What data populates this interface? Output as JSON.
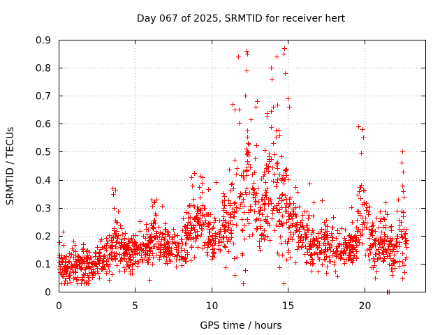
{
  "chart_data": {
    "type": "scatter",
    "title": "Day 067 of 2025, SRMTID for receiver hert",
    "xlabel": "GPS time / hours",
    "ylabel": "SRMTID / TECUs",
    "xlim": [
      0,
      24
    ],
    "ylim": [
      0,
      0.9
    ],
    "xticks": [
      0,
      5,
      10,
      15,
      20
    ],
    "xtick_labels": [
      "0",
      "5",
      "10",
      "15",
      "20"
    ],
    "yticks": [
      0,
      0.1,
      0.2,
      0.3,
      0.4,
      0.5,
      0.6,
      0.7,
      0.8,
      0.9
    ],
    "ytick_labels": [
      "0",
      "0.1",
      "0.2",
      "0.3",
      "0.4",
      "0.5",
      "0.6",
      "0.7",
      "0.8",
      "0.9"
    ],
    "grid": true,
    "marker": "+",
    "color": "#ff0000",
    "envelope": {
      "description": "approximate typical value and spread of the SRMTID scatter vs GPS time (estimated from the figure)",
      "x": [
        0,
        0.5,
        1,
        1.5,
        2,
        2.5,
        3,
        3.4,
        3.6,
        4,
        4.5,
        5,
        5.5,
        6,
        6.3,
        6.6,
        7,
        7.5,
        8,
        8.5,
        9,
        9.5,
        10,
        10.5,
        11,
        11.5,
        12,
        12.3,
        12.8,
        13.2,
        13.8,
        14.3,
        14.7,
        15,
        15.5,
        16,
        16.5,
        17,
        17.5,
        18,
        18.5,
        19,
        19.5,
        19.8,
        20.2,
        20.6,
        21,
        21.5,
        22,
        22.4,
        22.8
      ],
      "center": [
        0.1,
        0.08,
        0.1,
        0.09,
        0.1,
        0.1,
        0.12,
        0.14,
        0.18,
        0.16,
        0.14,
        0.13,
        0.15,
        0.17,
        0.2,
        0.17,
        0.16,
        0.15,
        0.15,
        0.2,
        0.26,
        0.25,
        0.2,
        0.17,
        0.23,
        0.28,
        0.35,
        0.4,
        0.3,
        0.25,
        0.38,
        0.35,
        0.33,
        0.27,
        0.25,
        0.22,
        0.17,
        0.16,
        0.17,
        0.15,
        0.15,
        0.14,
        0.18,
        0.28,
        0.25,
        0.15,
        0.18,
        0.16,
        0.14,
        0.22,
        0.16
      ],
      "spread": [
        0.05,
        0.05,
        0.05,
        0.05,
        0.05,
        0.05,
        0.06,
        0.09,
        0.09,
        0.06,
        0.05,
        0.05,
        0.06,
        0.07,
        0.09,
        0.06,
        0.06,
        0.05,
        0.06,
        0.08,
        0.09,
        0.08,
        0.08,
        0.07,
        0.12,
        0.17,
        0.25,
        0.22,
        0.15,
        0.12,
        0.2,
        0.22,
        0.22,
        0.12,
        0.1,
        0.08,
        0.07,
        0.06,
        0.07,
        0.06,
        0.05,
        0.05,
        0.09,
        0.16,
        0.12,
        0.07,
        0.08,
        0.07,
        0.06,
        0.12,
        0.06
      ]
    },
    "highlights": [
      {
        "x": 12.3,
        "y": 0.86
      },
      {
        "x": 12.35,
        "y": 0.85
      },
      {
        "x": 12.3,
        "y": 0.79
      },
      {
        "x": 14.75,
        "y": 0.87
      },
      {
        "x": 14.7,
        "y": 0.85
      },
      {
        "x": 14.8,
        "y": 0.78
      },
      {
        "x": 13.9,
        "y": 0.8
      },
      {
        "x": 13.95,
        "y": 0.76
      },
      {
        "x": 11.4,
        "y": 0.67
      },
      {
        "x": 11.5,
        "y": 0.65
      },
      {
        "x": 12.2,
        "y": 0.7
      },
      {
        "x": 12.9,
        "y": 0.66
      },
      {
        "x": 13.0,
        "y": 0.68
      },
      {
        "x": 15.0,
        "y": 0.69
      },
      {
        "x": 15.1,
        "y": 0.66
      },
      {
        "x": 19.6,
        "y": 0.59
      },
      {
        "x": 19.9,
        "y": 0.58
      },
      {
        "x": 19.95,
        "y": 0.55
      },
      {
        "x": 22.5,
        "y": 0.5
      },
      {
        "x": 22.45,
        "y": 0.46
      },
      {
        "x": 22.55,
        "y": 0.43
      },
      {
        "x": 22.5,
        "y": 0.38
      },
      {
        "x": 22.55,
        "y": 0.36
      },
      {
        "x": 22.6,
        "y": 0.34
      },
      {
        "x": 3.5,
        "y": 0.37
      },
      {
        "x": 3.55,
        "y": 0.35
      },
      {
        "x": 3.6,
        "y": 0.3
      },
      {
        "x": 6.1,
        "y": 0.33
      },
      {
        "x": 6.2,
        "y": 0.32
      },
      {
        "x": 8.7,
        "y": 0.41
      },
      {
        "x": 8.75,
        "y": 0.38
      },
      {
        "x": 9.4,
        "y": 0.41
      },
      {
        "x": 9.35,
        "y": 0.39
      },
      {
        "x": 0.2,
        "y": 0.03
      },
      {
        "x": 0.4,
        "y": 0.04
      },
      {
        "x": 1.8,
        "y": 0.03
      },
      {
        "x": 21.5,
        "y": 0.0
      },
      {
        "x": 21.55,
        "y": 0.0
      },
      {
        "x": 21.6,
        "y": 0.0
      }
    ],
    "scatter_seed": 67,
    "scatter_count": 1600
  }
}
